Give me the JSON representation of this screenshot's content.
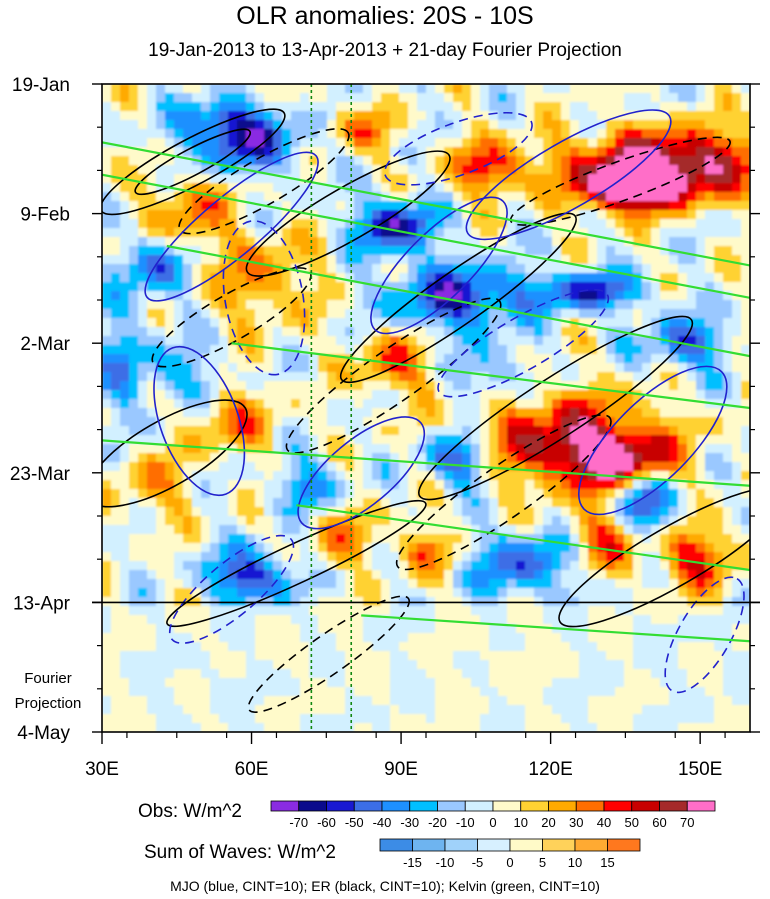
{
  "title": "OLR anomalies: 20S - 10S",
  "subtitle": "19-Jan-2013 to 13-Apr-2013 + 21-day Fourier Projection",
  "chart_data": {
    "type": "heatmap",
    "x_ticks": [
      "30E",
      "60E",
      "90E",
      "120E",
      "150E"
    ],
    "x_tick_values": [
      30,
      60,
      90,
      120,
      150
    ],
    "xlim": [
      30,
      160
    ],
    "y_ticks": [
      "19-Jan",
      "9-Feb",
      "2-Mar",
      "23-Mar",
      "13-Apr",
      "4-May"
    ],
    "y_tick_days": [
      0,
      21,
      42,
      63,
      84,
      105
    ],
    "ylim_days": [
      0,
      105
    ],
    "observation_end_day": 84,
    "projection_label": [
      "Fourier",
      "Projection"
    ],
    "reference_longitudes": [
      72,
      80
    ],
    "obs_colorbar": {
      "label": "Obs: W/m^2",
      "levels": [
        "-70",
        "-60",
        "-50",
        "-40",
        "-30",
        "-20",
        "-10",
        "0",
        "10",
        "20",
        "30",
        "40",
        "50",
        "60",
        "70"
      ],
      "colors": [
        "#8a2be2",
        "#0a0a8c",
        "#1919d2",
        "#3c6ee6",
        "#1e90ff",
        "#00bfff",
        "#9ac8ff",
        "#d2f0ff",
        "#fffaca",
        "#ffd232",
        "#ffaa00",
        "#ff6e00",
        "#ff0000",
        "#c80000",
        "#a52a2a",
        "#ff6ec8"
      ]
    },
    "waves_colorbar": {
      "label": "Sum of Waves: W/m^2",
      "levels": [
        "-15",
        "-10",
        "-5",
        "0",
        "5",
        "10",
        "15"
      ],
      "colors": [
        "#3c8ce6",
        "#6eb4f0",
        "#a0d2fa",
        "#d7f0ff",
        "#fffac8",
        "#ffd25a",
        "#ffaa32",
        "#ff781e"
      ]
    },
    "footnote": "MJO (blue, CINT=10); ER (black, CINT=10); Kelvin (green, CINT=10)"
  }
}
